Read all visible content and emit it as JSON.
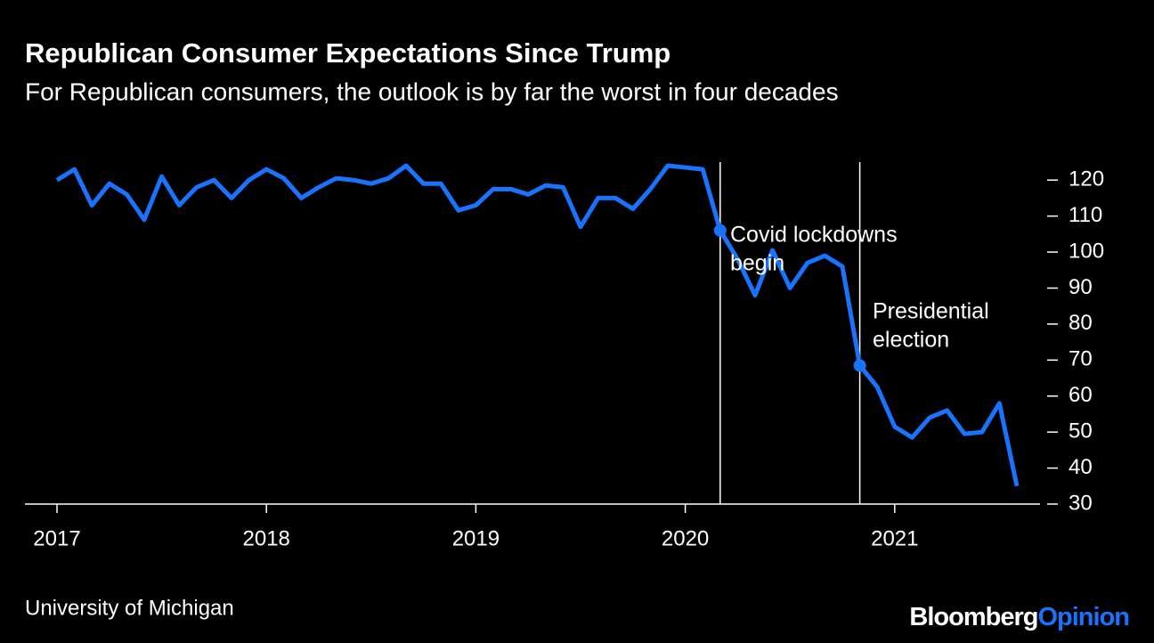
{
  "chart_data": {
    "type": "line",
    "title": "Republican Consumer Expectations Since Trump",
    "subtitle": "For Republican consumers, the outlook is by far the worst in four decades",
    "source": "University of Michigan",
    "logo": {
      "primary": "Bloomberg",
      "secondary": "Opinion"
    },
    "categories": [
      "2017",
      null,
      null,
      null,
      null,
      null,
      null,
      null,
      null,
      null,
      null,
      null,
      "2018",
      null,
      null,
      null,
      null,
      null,
      null,
      null,
      null,
      null,
      null,
      null,
      "2019",
      null,
      null,
      null,
      null,
      null,
      null,
      null,
      null,
      null,
      null,
      null,
      "2020",
      null,
      null,
      null,
      null,
      null,
      null,
      null,
      null,
      null,
      null,
      null,
      "2021",
      null,
      null,
      null,
      null,
      null,
      null,
      null
    ],
    "series": [
      {
        "name": "Republican consumer expectations",
        "color": "#1a73ff",
        "values": [
          120,
          123,
          113,
          119,
          116,
          109,
          121,
          113,
          118,
          120,
          115,
          120,
          123,
          120.5,
          115,
          118,
          120.5,
          120,
          119,
          120.5,
          124,
          119,
          119,
          111.6,
          113,
          117.5,
          117.5,
          116,
          118.5,
          118,
          107,
          115,
          115,
          112,
          117.5,
          124,
          123.5,
          123,
          106,
          98,
          88,
          100.5,
          90,
          97,
          99,
          96,
          68.5,
          62.5,
          51.5,
          48.5,
          54,
          56,
          49.5,
          50,
          58,
          35
        ]
      }
    ],
    "annotations": [
      {
        "text": [
          "Covid lockdowns",
          "begin"
        ]
      },
      {
        "text": [
          "Presidential",
          "election"
        ]
      }
    ],
    "ylim": [
      30,
      125
    ],
    "yticks": [
      30,
      40,
      50,
      60,
      70,
      80,
      90,
      100,
      110,
      120
    ],
    "axis_side": "right"
  }
}
